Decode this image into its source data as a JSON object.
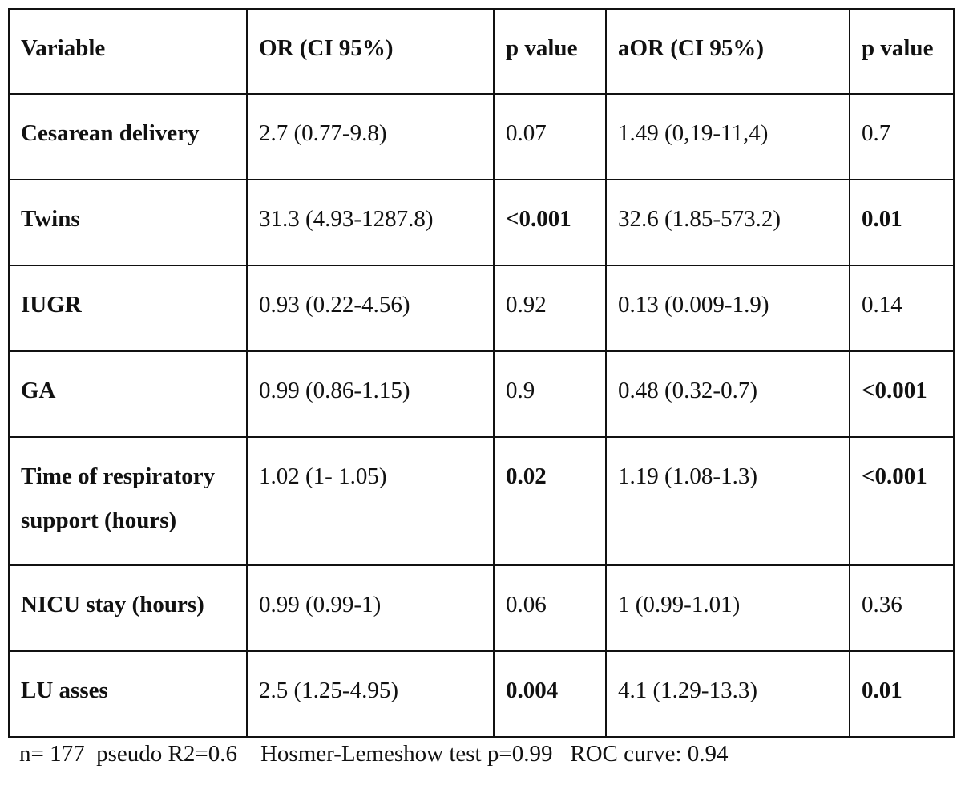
{
  "table": {
    "headers": [
      "Variable",
      "OR (CI 95%)",
      "p value",
      "aOR (CI 95%)",
      "p value"
    ],
    "rows": [
      {
        "variable": "Cesarean delivery",
        "or": "2.7 (0.77-9.8)",
        "p1": "0.07",
        "aor": "1.49 (0,19-11,4)",
        "p2": "0.7"
      },
      {
        "variable": "Twins",
        "or": "31.3 (4.93-1287.8)",
        "p1": "<0.001",
        "aor": "32.6 (1.85-573.2)",
        "p2": "0.01"
      },
      {
        "variable": "IUGR",
        "or": "0.93 (0.22-4.56)",
        "p1": "0.92",
        "aor": "0.13 (0.009-1.9)",
        "p2": "0.14"
      },
      {
        "variable": "GA",
        "or": "0.99 (0.86-1.15)",
        "p1": "0.9",
        "aor": "0.48 (0.32-0.7)",
        "p2": "<0.001"
      },
      {
        "variable_line1": "Time of respiratory",
        "variable_line2": "support (hours)",
        "or": "1.02 (1- 1.05)",
        "p1": "0.02",
        "aor": "1.19 (1.08-1.3)",
        "p2": "<0.001"
      },
      {
        "variable": "NICU stay (hours)",
        "or": "0.99 (0.99-1)",
        "p1": "0.06",
        "aor": "1 (0.99-1.01)",
        "p2": "0.36"
      },
      {
        "variable": "LU asses",
        "or": "2.5 (1.25-4.95)",
        "p1": "0.004",
        "aor": "4.1 (1.29-13.3)",
        "p2": "0.01"
      }
    ]
  },
  "footnote": "n= 177  pseudo R2=0.6    Hosmer-Lemeshow test p=0.99   ROC curve: 0.94"
}
